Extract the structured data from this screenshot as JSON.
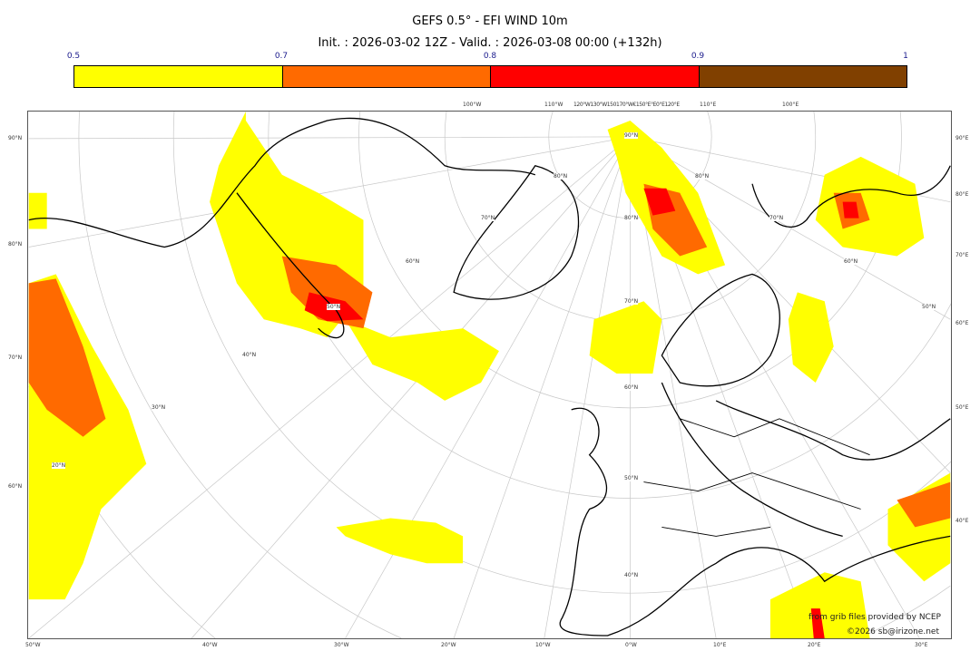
{
  "title": "GEFS 0.5° - EFI WIND 10m",
  "subtitle": "Init. : 2026-03-02 12Z - Valid. : 2026-03-08 00:00 (+132h)",
  "colorbar": {
    "ticks": [
      "0.5",
      "0.7",
      "0.8",
      "0.9",
      "1"
    ],
    "bins": [
      {
        "from": 0.5,
        "to": 0.7,
        "color": "#ffff00"
      },
      {
        "from": 0.7,
        "to": 0.8,
        "color": "#ff6a00"
      },
      {
        "from": 0.8,
        "to": 0.9,
        "color": "#ff0000"
      },
      {
        "from": 0.9,
        "to": 1.0,
        "color": "#804000"
      }
    ]
  },
  "axes": {
    "left": [
      "90°N",
      "80°N",
      "70°N",
      "60°N"
    ],
    "bottom": [
      "50°W",
      "40°W",
      "30°W",
      "20°W",
      "10°W",
      "0°W",
      "10°E",
      "20°E",
      "30°E"
    ],
    "right": [
      "90°E",
      "80°E",
      "70°E",
      "60°E",
      "50°E",
      "40°E"
    ],
    "top": [
      "100°W",
      "110°W",
      "120°W130°W150170°W€150°E°E0°E120°E",
      "110°E",
      "100°E"
    ],
    "inner": [
      "90°N",
      "80°N",
      "80°N",
      "70°N",
      "60°N",
      "50°N",
      "40°N",
      "30°N",
      "20°N",
      "70°N",
      "60°N",
      "50°N",
      "40°N",
      "80°N",
      "70°N",
      "60°N",
      "50°N"
    ]
  },
  "credits": {
    "source": "from grib files provided by NCEP",
    "copyright": "©2026 sb@irizone.net"
  }
}
